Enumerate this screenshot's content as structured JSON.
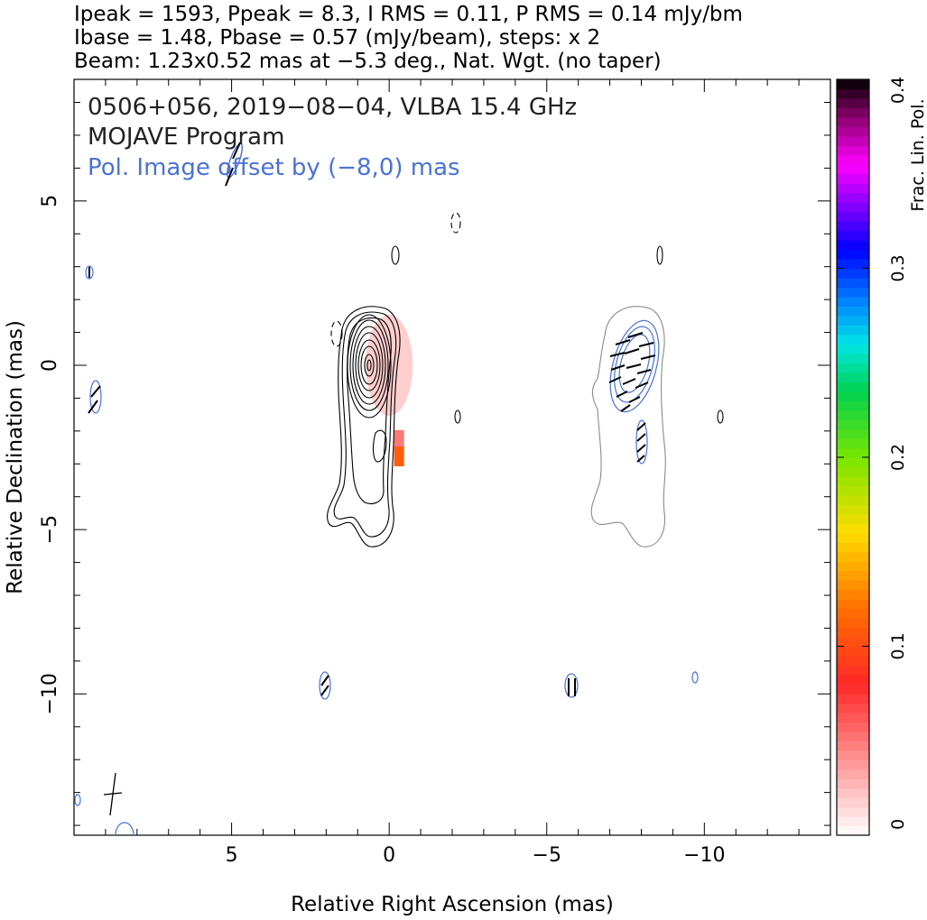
{
  "header": {
    "line1": "Ipeak = 1593, Ppeak = 8.3, I RMS = 0.11, P RMS = 0.14 mJy/bm",
    "line2": "Ibase = 1.48, Pbase = 0.57 (mJy/beam), steps: x 2",
    "line3": "Beam: 1.23x0.52 mas at −5.3 deg., Nat. Wgt. (no taper)"
  },
  "plot": {
    "title": "0506+056, 2019−08−04, VLBA 15.4 GHz",
    "program": "MOJAVE Program",
    "pol_note": "Pol. Image offset by (−8,0) mas"
  },
  "colors": {
    "stokes_i_contour": "#000000",
    "pol_i_contour": "#8a8a8a",
    "pol_contour": "#4a72d6",
    "annotation_blue": "#4a72d6"
  },
  "chart_data": {
    "type": "heatmap",
    "xlabel": "Relative Right Ascension (mas)",
    "ylabel": "Relative Declination (mas)",
    "xlim": [
      10,
      -14
    ],
    "ylim": [
      -14.3,
      8.7
    ],
    "xticks": [
      5,
      0,
      -5,
      -10
    ],
    "yticks": [
      5,
      0,
      -5,
      -10
    ],
    "xtick_labels": [
      "5",
      "0",
      "−5",
      "−10"
    ],
    "ytick_labels": [
      "5",
      "0",
      "−5",
      "−10"
    ],
    "colorbar": {
      "label": "Frac. Lin. Pol.",
      "range": [
        0,
        0.4
      ],
      "ticks": [
        0,
        0.1,
        0.2,
        0.3,
        0.4
      ],
      "tick_labels": [
        "0",
        "0.1",
        "0.2",
        "0.3",
        "0.4"
      ]
    },
    "stokes_i_core": {
      "ra": 0,
      "dec": 0
    },
    "pol_image_offset": [
      -8,
      0
    ],
    "frac_pol_patches": [
      {
        "ra": 0.0,
        "dec": 0.0,
        "frac_pol": 0.02
      },
      {
        "ra": -0.3,
        "dec": -2.3,
        "frac_pol": 0.05
      },
      {
        "ra": -0.3,
        "dec": -2.8,
        "frac_pol": 0.11
      }
    ]
  }
}
